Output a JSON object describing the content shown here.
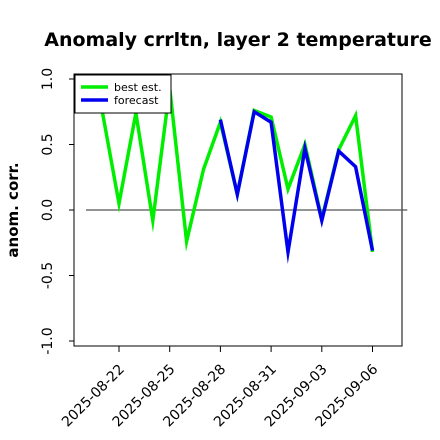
{
  "chart_data": {
    "type": "line",
    "title": "Anomaly crrltn, layer 2 temperature",
    "xlabel": "",
    "ylabel": "anom. corr.",
    "ylim": [
      -1.0,
      1.0
    ],
    "y_ticks": [
      "-1.0",
      "-0.5",
      "0.0",
      "0.5",
      "1.0"
    ],
    "y_tick_values": [
      -1.0,
      -0.5,
      0.0,
      0.5,
      1.0
    ],
    "x_tick_labels": [
      "2025-08-22",
      "2025-08-25",
      "2025-08-28",
      "2025-08-31",
      "2025-09-03",
      "2025-09-06"
    ],
    "x_tick_days": [
      0,
      3,
      6,
      9,
      12,
      15
    ],
    "x_tick_colors": [
      "#000000",
      "#000000",
      "#2e8b22",
      "#000000",
      "#000000",
      "#000000"
    ],
    "xlim_days": [
      -2,
      17
    ],
    "zero_line": true,
    "grid": false,
    "legend_position": "top-left",
    "series": [
      {
        "name": "best est.",
        "color": "#00ee00",
        "x_days": [
          -1.0,
          0.0,
          1.0,
          2.0,
          3.0,
          4.0,
          5.0,
          6.0,
          7.0,
          8.0,
          9.0,
          10.0,
          11.0,
          12.0,
          13.0,
          14.0,
          15.0
        ],
        "values": [
          0.76,
          0.05,
          0.74,
          -0.08,
          0.93,
          -0.24,
          0.31,
          0.67,
          0.12,
          0.76,
          0.71,
          0.16,
          0.5,
          -0.07,
          0.46,
          0.72,
          -0.32
        ]
      },
      {
        "name": "forecast",
        "color": "#0000ee",
        "x_days": [
          6.0,
          7.0,
          8.0,
          9.0,
          10.0,
          11.0,
          12.0,
          13.0,
          14.0,
          15.0
        ],
        "values": [
          0.69,
          0.12,
          0.75,
          0.67,
          -0.32,
          0.47,
          -0.08,
          0.45,
          0.33,
          -0.31
        ]
      }
    ]
  }
}
